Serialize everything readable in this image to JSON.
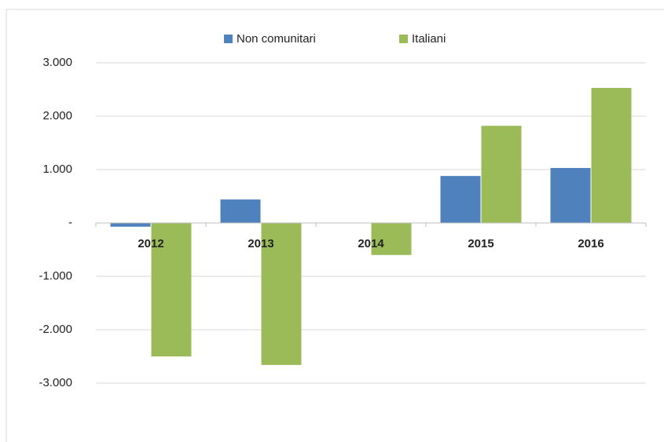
{
  "chart_data": {
    "type": "bar",
    "categories": [
      "2012",
      "2013",
      "2014",
      "2015",
      "2016"
    ],
    "series": [
      {
        "name": "Non comunitari",
        "color": "#4f81bd",
        "values": [
          -70,
          440,
          0,
          880,
          1030
        ]
      },
      {
        "name": "Italiani",
        "color": "#9bbb59",
        "values": [
          -2500,
          -2660,
          -600,
          1820,
          2530
        ]
      }
    ],
    "ylim": [
      -3000,
      3000
    ],
    "yticks": [
      {
        "value": -3000,
        "label": "-3.000"
      },
      {
        "value": -2000,
        "label": "-2.000"
      },
      {
        "value": -1000,
        "label": "-1.000"
      },
      {
        "value": 0,
        "label": "-"
      },
      {
        "value": 1000,
        "label": "1.000"
      },
      {
        "value": 2000,
        "label": "2.000"
      },
      {
        "value": 3000,
        "label": "3.000"
      }
    ],
    "grid": true,
    "legend": "top"
  }
}
